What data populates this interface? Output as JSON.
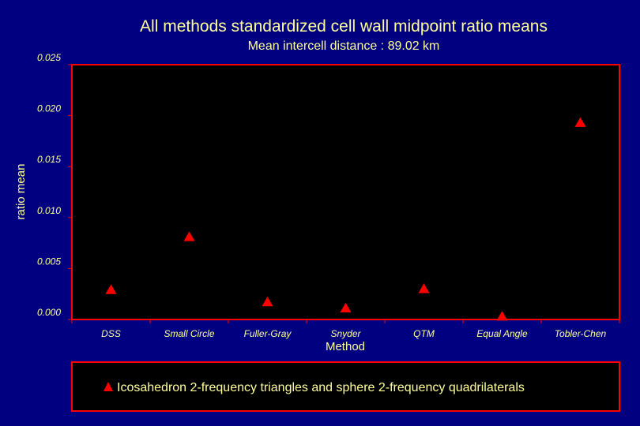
{
  "colors": {
    "background": "#000080",
    "plot_area": "#000000",
    "frame": "#ff0000",
    "text": "#ffff99",
    "marker": "#ff0000"
  },
  "chart_data": {
    "type": "scatter",
    "title": "All methods standardized cell wall midpoint ratio means",
    "subtitle": "Mean intercell distance : 89.02 km",
    "xlabel": "Method",
    "ylabel": "ratio mean",
    "categories": [
      "DSS",
      "Small Circle",
      "Fuller-Gray",
      "Snyder",
      "QTM",
      "Equal Angle",
      "Tobler-Chen"
    ],
    "yticks": [
      "0.000",
      "0.005",
      "0.010",
      "0.015",
      "0.020",
      "0.025"
    ],
    "ylim": [
      0,
      0.025
    ],
    "marker": "triangle-up",
    "legend_position": "bottom",
    "grid": false,
    "series": [
      {
        "name": "Icosahedron 2-frequency triangles and sphere 2-frequency quadrilaterals",
        "values": [
          0.0029,
          0.0081,
          0.0017,
          0.0011,
          0.003,
          0.0003,
          0.0193
        ]
      }
    ]
  }
}
